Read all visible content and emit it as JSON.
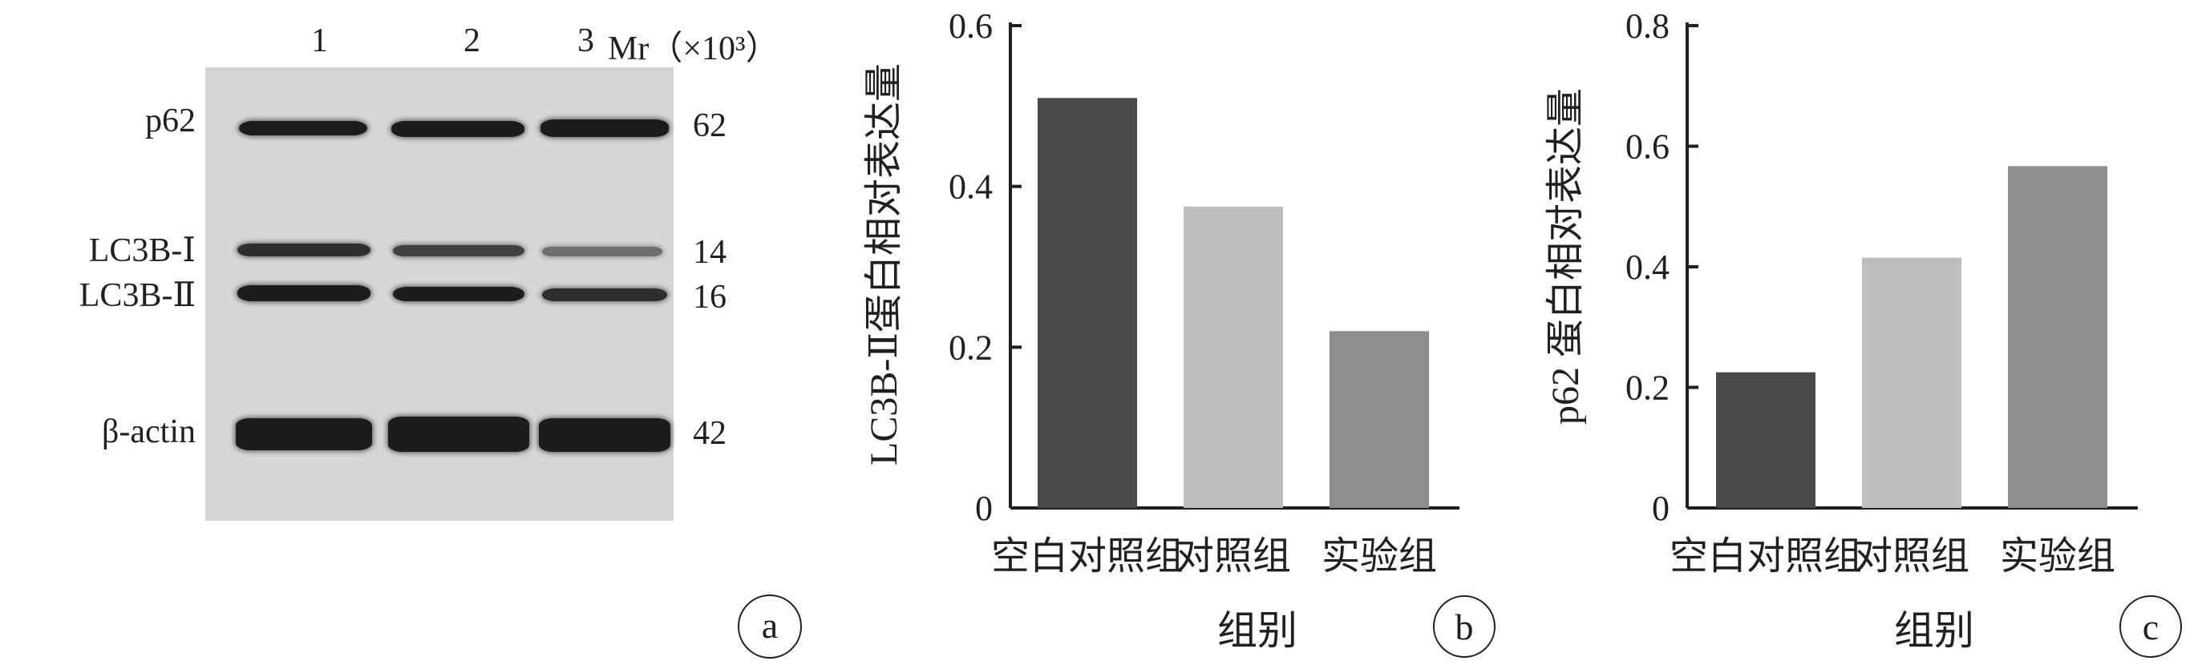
{
  "panel_a": {
    "lanes": [
      "1",
      "2",
      "3"
    ],
    "mr_label": "Mr（×10³）",
    "rows": [
      {
        "name": "p62",
        "mw": "62"
      },
      {
        "name": "LC3B-Ⅰ",
        "mw": "14"
      },
      {
        "name": "LC3B-Ⅱ",
        "mw": "16"
      },
      {
        "name": "β-actin",
        "mw": "42"
      }
    ],
    "panel_tag": "a"
  },
  "chart_data": [
    {
      "type": "bar",
      "panel_tag": "b",
      "categories": [
        "空白对照组",
        "对照组",
        "实验组"
      ],
      "values": [
        0.51,
        0.375,
        0.22
      ],
      "colors": [
        "#4a484a",
        "#bdbdbd",
        "#8e8d8e"
      ],
      "xlabel": "组别",
      "ylabel": "LC3B-Ⅱ蛋白相对表达量",
      "ylim": [
        0,
        0.6
      ],
      "yticks": [
        0,
        0.2,
        0.4,
        0.6
      ],
      "ytick_labels": [
        "0",
        "0.2",
        "0.4",
        "0.6"
      ],
      "grid": false
    },
    {
      "type": "bar",
      "panel_tag": "c",
      "categories": [
        "空白对照组",
        "对照组",
        "实验组"
      ],
      "values": [
        0.225,
        0.415,
        0.567
      ],
      "colors": [
        "#4a484a",
        "#bdbdbd",
        "#8e8d8e"
      ],
      "xlabel": "组别",
      "ylabel": "p62 蛋白相对表达量",
      "ylim": [
        0,
        0.8
      ],
      "yticks": [
        0,
        0.2,
        0.4,
        0.6,
        0.8
      ],
      "ytick_labels": [
        "0",
        "0.2",
        "0.4",
        "0.6",
        "0.8"
      ],
      "grid": false
    }
  ]
}
